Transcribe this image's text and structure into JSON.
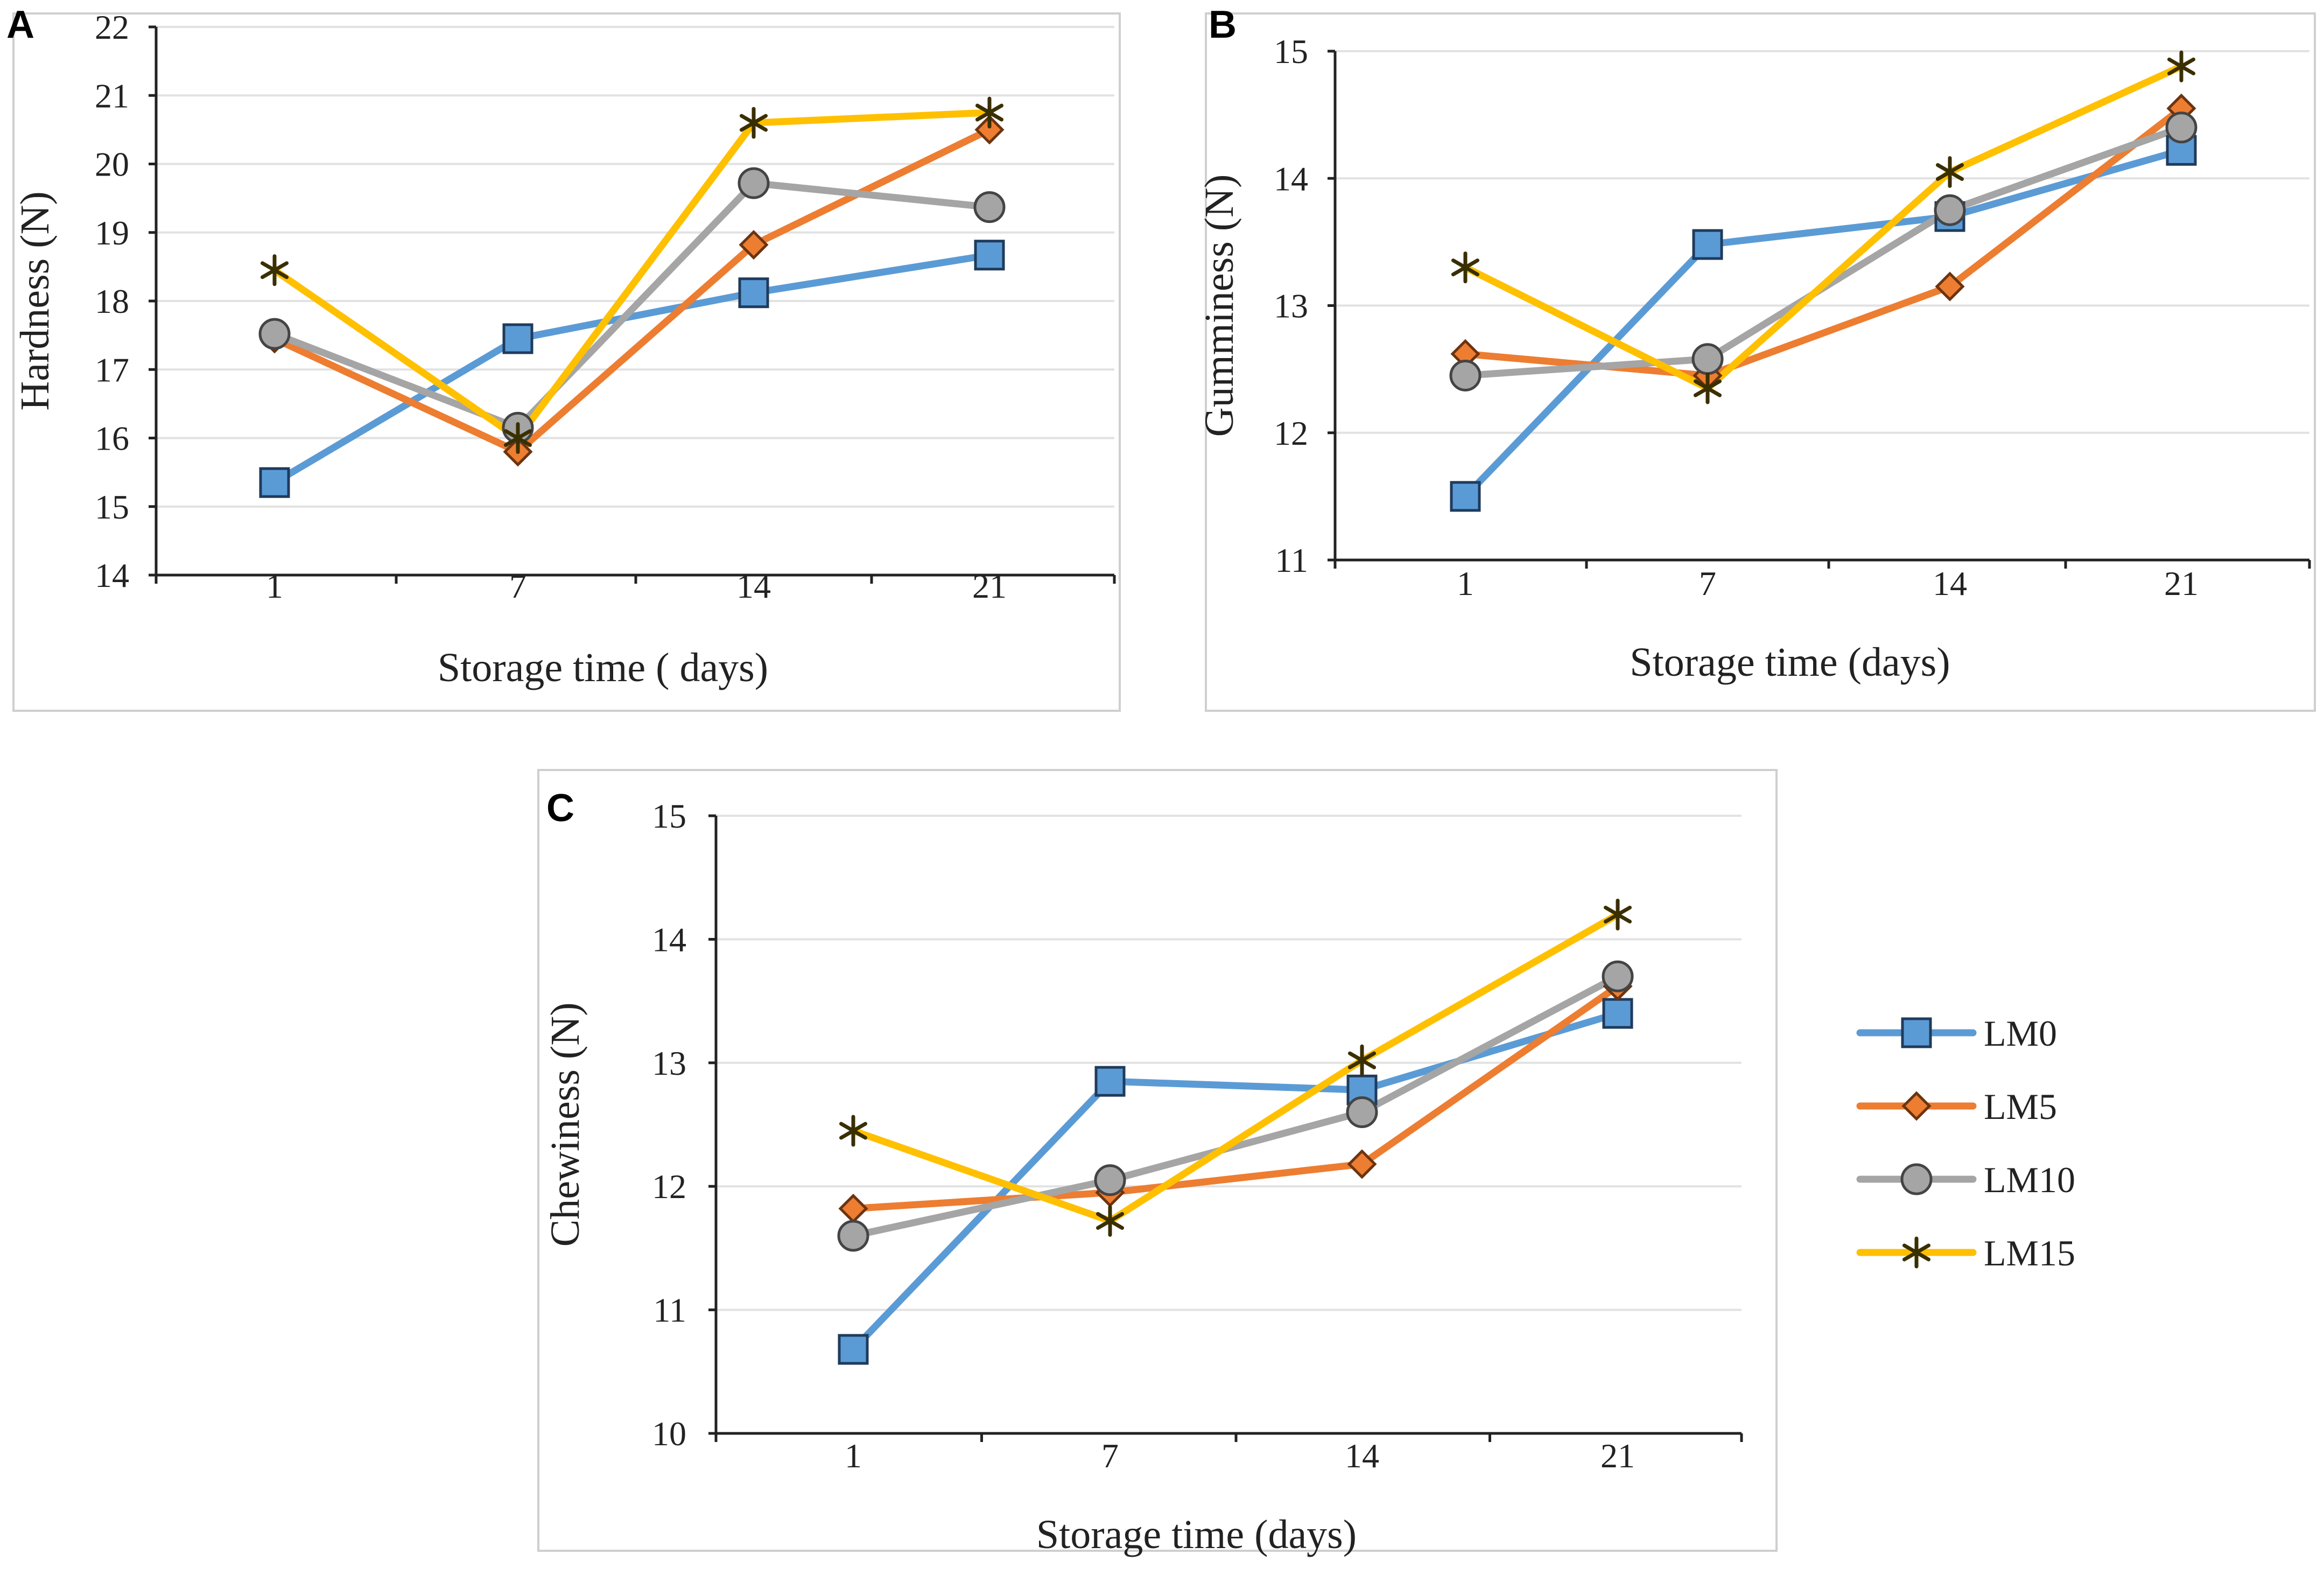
{
  "figure": {
    "series_styles": [
      {
        "name": "LM0",
        "color": "#5b9bd5",
        "marker": "square"
      },
      {
        "name": "LM5",
        "color": "#ed7d31",
        "marker": "diamond"
      },
      {
        "name": "LM10",
        "color": "#a5a5a5",
        "marker": "circle"
      },
      {
        "name": "LM15",
        "color": "#ffc000",
        "marker": "star"
      }
    ],
    "legend": {
      "items": [
        "LM0",
        "LM5",
        "LM10",
        "LM15"
      ]
    }
  },
  "chart_data": [
    {
      "panel": "A",
      "type": "line",
      "title": "",
      "xlabel": "Storage time ( days)",
      "ylabel": "Hardness (N)",
      "categories": [
        "1",
        "7",
        "14",
        "21"
      ],
      "ylim": [
        14,
        22
      ],
      "yticks": [
        14,
        15,
        16,
        17,
        18,
        19,
        20,
        21,
        22
      ],
      "series": [
        {
          "name": "LM0",
          "values": [
            15.35,
            17.45,
            18.12,
            18.67
          ]
        },
        {
          "name": "LM5",
          "values": [
            17.45,
            15.8,
            18.82,
            20.5
          ]
        },
        {
          "name": "LM10",
          "values": [
            17.52,
            16.15,
            19.72,
            19.37
          ]
        },
        {
          "name": "LM15",
          "values": [
            18.45,
            16.0,
            20.6,
            20.75
          ]
        }
      ]
    },
    {
      "panel": "B",
      "type": "line",
      "title": "",
      "xlabel": "Storage time (days)",
      "ylabel": "Gumminess (N)",
      "categories": [
        "1",
        "7",
        "14",
        "21"
      ],
      "ylim": [
        11,
        15
      ],
      "yticks": [
        11,
        12,
        13,
        14,
        15
      ],
      "series": [
        {
          "name": "LM0",
          "values": [
            11.5,
            13.48,
            13.7,
            14.22
          ]
        },
        {
          "name": "LM5",
          "values": [
            12.62,
            12.45,
            13.15,
            14.55
          ]
        },
        {
          "name": "LM10",
          "values": [
            12.45,
            12.58,
            13.75,
            14.4
          ]
        },
        {
          "name": "LM15",
          "values": [
            13.3,
            12.35,
            14.05,
            14.88
          ]
        }
      ]
    },
    {
      "panel": "C",
      "type": "line",
      "title": "",
      "xlabel": "Storage time (days)",
      "ylabel": "Chewiness (N)",
      "categories": [
        "1",
        "7",
        "14",
        "21"
      ],
      "ylim": [
        10,
        15
      ],
      "yticks": [
        10,
        11,
        12,
        13,
        14,
        15
      ],
      "series": [
        {
          "name": "LM0",
          "values": [
            10.68,
            12.85,
            12.78,
            13.4
          ]
        },
        {
          "name": "LM5",
          "values": [
            11.82,
            11.95,
            12.18,
            13.62
          ]
        },
        {
          "name": "LM10",
          "values": [
            11.6,
            12.05,
            12.6,
            13.7
          ]
        },
        {
          "name": "LM15",
          "values": [
            12.45,
            11.72,
            13.02,
            14.2
          ]
        }
      ]
    }
  ]
}
